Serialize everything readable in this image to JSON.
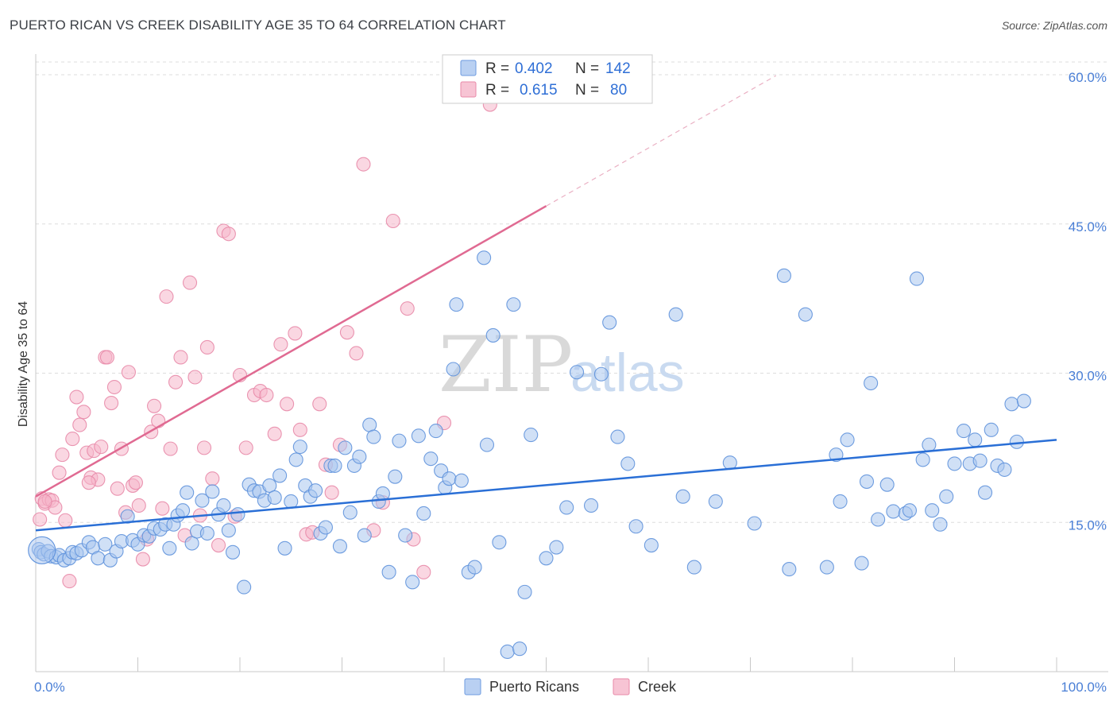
{
  "title": "PUERTO RICAN VS CREEK DISABILITY AGE 35 TO 64 CORRELATION CHART",
  "source": "Source: ZipAtlas.com",
  "watermark": {
    "zip": "ZIP",
    "atlas": "atlas"
  },
  "legend": {
    "rows": [
      {
        "r_label": "R = ",
        "r_value": "0.402",
        "n_label": "N = ",
        "n_value": "142"
      },
      {
        "r_label": "R = ",
        "r_value": "0.615",
        "n_label": "N = ",
        "n_value": "80"
      }
    ]
  },
  "colors": {
    "blue": "#2a6fd6",
    "blue_fill": "#a9c6ef",
    "pink": "#e06a92",
    "pink_fill": "#f5b6ca",
    "grid": "#dddddd"
  },
  "chart_data": {
    "type": "scatter",
    "title": "PUERTO RICAN VS CREEK DISABILITY AGE 35 TO 64 CORRELATION CHART",
    "xlabel": "",
    "ylabel": "Disability Age 35 to 64",
    "xlim": [
      0,
      100
    ],
    "ylim": [
      0,
      60
    ],
    "x_tick_labels": [
      "0.0%",
      "100.0%"
    ],
    "y_ticks": [
      15,
      30,
      45,
      60
    ],
    "y_tick_labels": [
      "15.0%",
      "30.0%",
      "45.0%",
      "60.0%"
    ],
    "grid": true,
    "legend_position": "top-center",
    "series": [
      {
        "name": "Puerto Ricans",
        "color": "#2a6fd6",
        "r": "0.402",
        "n": "142",
        "trend": {
          "x": [
            0,
            100
          ],
          "y": [
            14.2,
            23.3
          ]
        },
        "points": [
          [
            0.3,
            12.3
          ],
          [
            0.5,
            12.0
          ],
          [
            0.8,
            11.8
          ],
          [
            1.2,
            12.1
          ],
          [
            1.5,
            11.6
          ],
          [
            2.0,
            11.5
          ],
          [
            2.3,
            11.7
          ],
          [
            2.8,
            11.2
          ],
          [
            3.3,
            11.4
          ],
          [
            3.6,
            12.0
          ],
          [
            4.0,
            11.9
          ],
          [
            4.5,
            12.2
          ],
          [
            5.2,
            13.0
          ],
          [
            5.6,
            12.5
          ],
          [
            6.1,
            11.4
          ],
          [
            6.8,
            12.8
          ],
          [
            7.3,
            11.2
          ],
          [
            7.9,
            12.1
          ],
          [
            8.4,
            13.1
          ],
          [
            9.0,
            15.6
          ],
          [
            9.5,
            13.2
          ],
          [
            10.0,
            12.8
          ],
          [
            10.6,
            13.7
          ],
          [
            11.1,
            13.6
          ],
          [
            11.6,
            14.4
          ],
          [
            12.2,
            14.3
          ],
          [
            12.7,
            14.8
          ],
          [
            13.1,
            12.4
          ],
          [
            13.5,
            14.8
          ],
          [
            13.9,
            15.7
          ],
          [
            14.4,
            16.2
          ],
          [
            14.8,
            18.0
          ],
          [
            15.3,
            12.9
          ],
          [
            15.8,
            14.1
          ],
          [
            16.3,
            17.2
          ],
          [
            16.8,
            13.9
          ],
          [
            17.3,
            18.1
          ],
          [
            17.9,
            15.8
          ],
          [
            18.4,
            16.7
          ],
          [
            18.9,
            14.2
          ],
          [
            19.3,
            12.0
          ],
          [
            19.8,
            15.8
          ],
          [
            20.4,
            8.5
          ],
          [
            20.9,
            18.8
          ],
          [
            21.4,
            18.2
          ],
          [
            21.9,
            18.1
          ],
          [
            22.4,
            17.2
          ],
          [
            22.9,
            18.7
          ],
          [
            23.4,
            17.5
          ],
          [
            23.9,
            19.7
          ],
          [
            24.4,
            12.4
          ],
          [
            25.0,
            17.1
          ],
          [
            25.5,
            21.3
          ],
          [
            25.9,
            22.6
          ],
          [
            26.4,
            18.7
          ],
          [
            26.9,
            17.6
          ],
          [
            27.4,
            18.2
          ],
          [
            27.9,
            13.9
          ],
          [
            28.4,
            14.5
          ],
          [
            28.9,
            20.7
          ],
          [
            29.3,
            20.7
          ],
          [
            29.8,
            12.6
          ],
          [
            30.3,
            22.5
          ],
          [
            30.8,
            16.0
          ],
          [
            31.2,
            20.7
          ],
          [
            31.7,
            21.6
          ],
          [
            32.2,
            13.7
          ],
          [
            32.7,
            24.8
          ],
          [
            33.1,
            23.6
          ],
          [
            33.6,
            17.1
          ],
          [
            34.0,
            17.9
          ],
          [
            34.6,
            10.0
          ],
          [
            35.2,
            19.6
          ],
          [
            35.6,
            23.2
          ],
          [
            36.2,
            13.7
          ],
          [
            36.9,
            9.0
          ],
          [
            37.5,
            23.7
          ],
          [
            38.0,
            15.9
          ],
          [
            38.7,
            21.4
          ],
          [
            39.2,
            24.2
          ],
          [
            39.7,
            20.2
          ],
          [
            40.1,
            18.5
          ],
          [
            40.5,
            19.4
          ],
          [
            40.9,
            30.4
          ],
          [
            41.2,
            36.9
          ],
          [
            41.7,
            19.2
          ],
          [
            42.4,
            10.0
          ],
          [
            43.0,
            10.5
          ],
          [
            43.9,
            41.6
          ],
          [
            44.2,
            22.8
          ],
          [
            44.8,
            33.8
          ],
          [
            45.4,
            13.0
          ],
          [
            46.2,
            2.0
          ],
          [
            46.8,
            36.9
          ],
          [
            47.4,
            2.3
          ],
          [
            47.9,
            8.0
          ],
          [
            48.5,
            23.8
          ],
          [
            50.0,
            11.4
          ],
          [
            51.0,
            12.5
          ],
          [
            52.0,
            16.5
          ],
          [
            53.0,
            30.1
          ],
          [
            54.4,
            16.7
          ],
          [
            55.4,
            29.9
          ],
          [
            56.2,
            35.1
          ],
          [
            57.0,
            23.6
          ],
          [
            58.0,
            20.9
          ],
          [
            58.8,
            14.6
          ],
          [
            60.3,
            12.7
          ],
          [
            62.7,
            35.9
          ],
          [
            63.4,
            17.6
          ],
          [
            64.5,
            10.5
          ],
          [
            66.6,
            17.1
          ],
          [
            68.0,
            21.0
          ],
          [
            70.4,
            14.9
          ],
          [
            73.3,
            39.8
          ],
          [
            73.8,
            10.3
          ],
          [
            75.4,
            35.9
          ],
          [
            77.5,
            10.5
          ],
          [
            78.4,
            21.8
          ],
          [
            78.8,
            17.1
          ],
          [
            79.5,
            23.3
          ],
          [
            80.9,
            10.9
          ],
          [
            81.4,
            19.1
          ],
          [
            81.8,
            29.0
          ],
          [
            82.5,
            15.3
          ],
          [
            83.4,
            18.8
          ],
          [
            84.0,
            16.1
          ],
          [
            85.2,
            15.9
          ],
          [
            85.6,
            16.2
          ],
          [
            86.3,
            39.5
          ],
          [
            86.9,
            21.3
          ],
          [
            87.5,
            22.8
          ],
          [
            87.8,
            16.2
          ],
          [
            88.6,
            14.8
          ],
          [
            89.2,
            17.6
          ],
          [
            90.0,
            20.9
          ],
          [
            90.9,
            24.2
          ],
          [
            91.5,
            20.9
          ],
          [
            92.0,
            23.3
          ],
          [
            92.5,
            21.2
          ],
          [
            93.0,
            18.0
          ],
          [
            93.6,
            24.3
          ],
          [
            94.2,
            20.7
          ],
          [
            94.9,
            20.3
          ],
          [
            95.6,
            26.9
          ],
          [
            96.1,
            23.1
          ],
          [
            96.8,
            27.2
          ]
        ]
      },
      {
        "name": "Creek",
        "color": "#e06a92",
        "r": "0.615",
        "n": "80",
        "trend": {
          "x": [
            0,
            50
          ],
          "y": [
            17.6,
            46.8
          ]
        },
        "trend_extension": {
          "x": [
            50,
            72.5
          ],
          "y": [
            46.8,
            59.9
          ]
        },
        "points": [
          [
            0.4,
            15.3
          ],
          [
            0.6,
            17.4
          ],
          [
            0.9,
            16.9
          ],
          [
            1.3,
            17.3
          ],
          [
            1.6,
            17.2
          ],
          [
            1.9,
            16.5
          ],
          [
            2.3,
            20.0
          ],
          [
            2.6,
            21.8
          ],
          [
            2.9,
            15.2
          ],
          [
            3.3,
            9.1
          ],
          [
            3.6,
            23.4
          ],
          [
            4.0,
            27.6
          ],
          [
            4.3,
            24.8
          ],
          [
            4.7,
            26.1
          ],
          [
            5.0,
            22.0
          ],
          [
            5.4,
            19.5
          ],
          [
            5.7,
            22.2
          ],
          [
            6.1,
            19.3
          ],
          [
            6.4,
            22.6
          ],
          [
            6.8,
            31.6
          ],
          [
            7.0,
            31.6
          ],
          [
            7.4,
            27.0
          ],
          [
            7.7,
            28.6
          ],
          [
            8.0,
            18.4
          ],
          [
            8.4,
            22.4
          ],
          [
            8.8,
            16.0
          ],
          [
            9.1,
            30.1
          ],
          [
            9.5,
            18.7
          ],
          [
            9.8,
            19.0
          ],
          [
            10.1,
            16.7
          ],
          [
            10.5,
            11.3
          ],
          [
            10.9,
            13.3
          ],
          [
            11.3,
            24.1
          ],
          [
            11.6,
            26.7
          ],
          [
            12.0,
            25.2
          ],
          [
            12.4,
            16.4
          ],
          [
            12.8,
            37.7
          ],
          [
            13.2,
            22.4
          ],
          [
            13.7,
            29.1
          ],
          [
            14.2,
            31.6
          ],
          [
            14.6,
            13.7
          ],
          [
            15.1,
            39.1
          ],
          [
            15.6,
            29.6
          ],
          [
            16.1,
            15.7
          ],
          [
            16.5,
            22.5
          ],
          [
            16.8,
            32.6
          ],
          [
            17.3,
            19.4
          ],
          [
            17.9,
            12.7
          ],
          [
            18.4,
            44.3
          ],
          [
            18.9,
            44.0
          ],
          [
            19.5,
            15.6
          ],
          [
            20.0,
            29.8
          ],
          [
            20.6,
            22.5
          ],
          [
            21.4,
            27.8
          ],
          [
            22.0,
            28.2
          ],
          [
            22.6,
            27.8
          ],
          [
            23.4,
            23.9
          ],
          [
            24.0,
            32.9
          ],
          [
            24.6,
            26.9
          ],
          [
            25.4,
            34.0
          ],
          [
            25.9,
            24.3
          ],
          [
            26.5,
            13.8
          ],
          [
            27.1,
            14.0
          ],
          [
            27.8,
            26.9
          ],
          [
            28.4,
            20.8
          ],
          [
            29.0,
            18.0
          ],
          [
            29.8,
            22.8
          ],
          [
            30.5,
            34.1
          ],
          [
            31.4,
            32.0
          ],
          [
            32.1,
            51.0
          ],
          [
            33.1,
            14.2
          ],
          [
            34.0,
            17.0
          ],
          [
            35.0,
            45.3
          ],
          [
            36.4,
            36.5
          ],
          [
            37.0,
            13.3
          ],
          [
            38.0,
            10.0
          ],
          [
            40.0,
            25.0
          ],
          [
            44.5,
            57.0
          ],
          [
            5.2,
            19.0
          ],
          [
            0.9,
            17.1
          ]
        ]
      }
    ]
  },
  "bottom_legend": [
    {
      "label": "Puerto Ricans"
    },
    {
      "label": "Creek"
    }
  ]
}
